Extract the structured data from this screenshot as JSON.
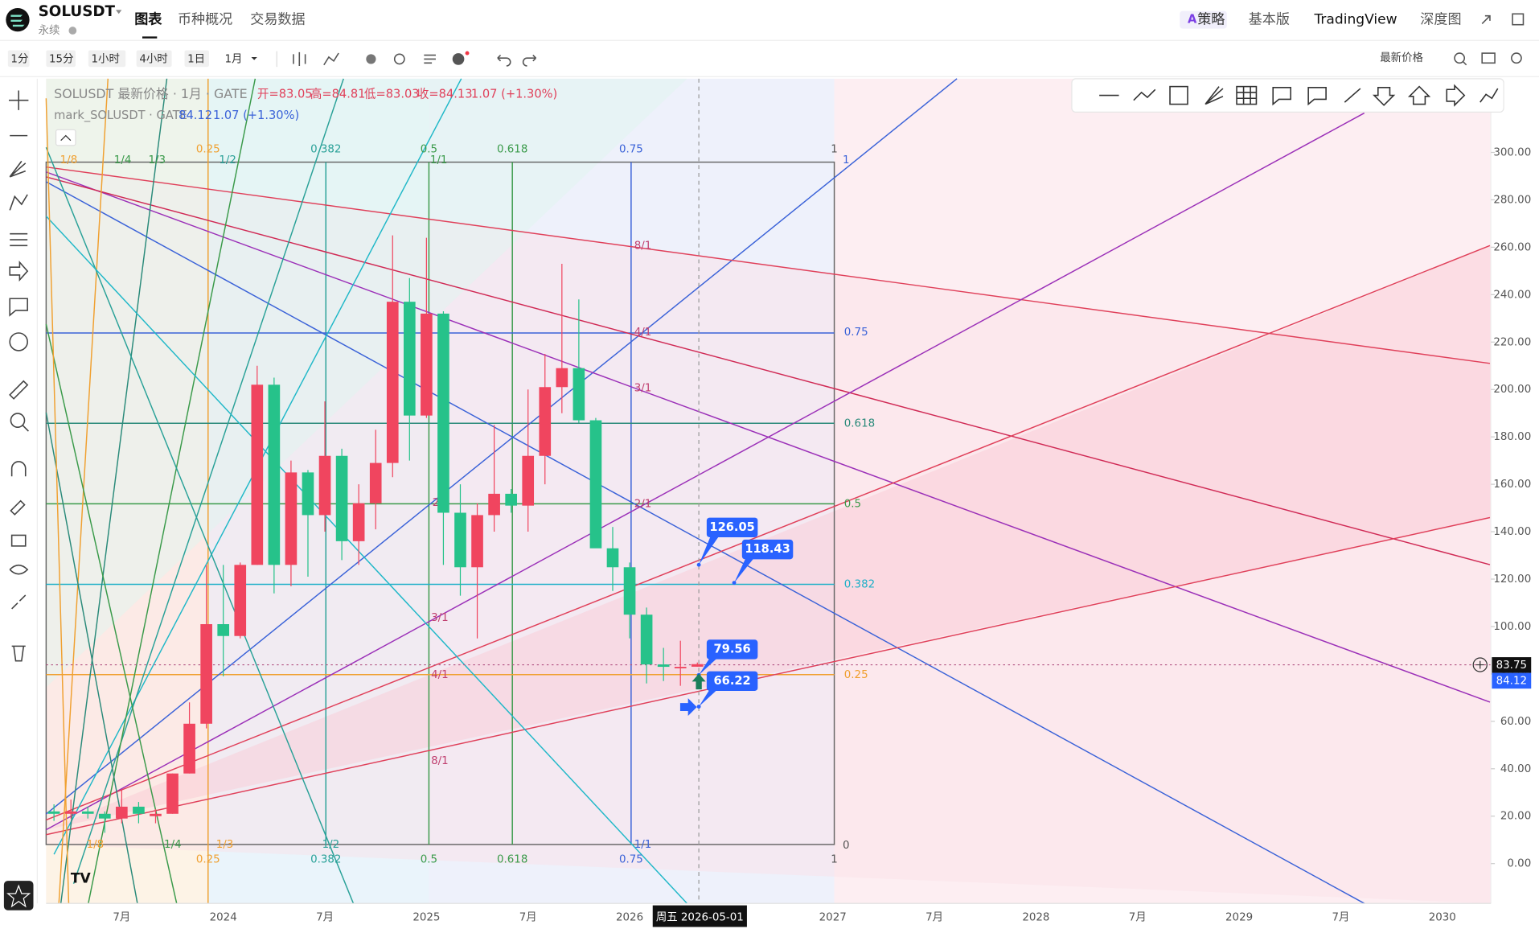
{
  "header": {
    "symbol": "SOLUSDT",
    "contract": "永续",
    "tabs": [
      "图表",
      "币种概况",
      "交易数据"
    ],
    "right_tabs": [
      "策略",
      "基本版",
      "TradingView",
      "深度图"
    ]
  },
  "toolbar": {
    "intervals": [
      "1分",
      "15分",
      "1小时",
      "4小时",
      "1日",
      "1月"
    ],
    "price_type": "最新价格"
  },
  "legend": {
    "title": "SOLUSDT 最新价格 · 1月 · GATE",
    "open": "开=83.05",
    "high": "高=84.81",
    "low": "低=83.03",
    "close": "收=84.13",
    "change": "1.07 (+1.30%)",
    "mark_title": "mark_SOLUSDT · GATE",
    "mark_price": "84.12",
    "mark_change": "1.07 (+1.30%)"
  },
  "drawings": {
    "top_labels": [
      "1/8",
      "1/4",
      "1/3",
      "0.25",
      "1/2",
      "0.382",
      "0.5",
      "1/1",
      "0.618",
      "0.75",
      "1",
      "1"
    ],
    "bottom_labels": [
      "1/8",
      "1/4",
      "1/3",
      "1/2",
      "1/1",
      "0",
      "0.25",
      "0.382",
      "0.5",
      "0.618",
      "0.75",
      "1"
    ],
    "right_labels": [
      "0.75",
      "0.618",
      "0.5",
      "0.382",
      "0.25"
    ],
    "gann_labels": [
      "8/1",
      "4/1",
      "3/1",
      "2/1",
      "2",
      "3/1",
      "4/1",
      "8/1"
    ]
  },
  "chart_data": {
    "type": "candlestick",
    "up_color": "#f0455f",
    "down_color": "#26c28a",
    "ylim": [
      -16.8,
      331.1
    ],
    "yticks": [
      {
        "value": 0,
        "label": "0.00"
      },
      {
        "value": 20,
        "label": "20.00"
      },
      {
        "value": 40,
        "label": "40.00"
      },
      {
        "value": 60,
        "label": "60.00"
      },
      {
        "value": 80,
        "label": "80.00"
      },
      {
        "value": 100,
        "label": "100.00"
      },
      {
        "value": 120,
        "label": "120.00"
      },
      {
        "value": 140,
        "label": "140.00"
      },
      {
        "value": 160,
        "label": "160.00"
      },
      {
        "value": 180,
        "label": "180.00"
      },
      {
        "value": 200,
        "label": "200.00"
      },
      {
        "value": 220,
        "label": "220.00"
      },
      {
        "value": 240,
        "label": "240.00"
      },
      {
        "value": 260,
        "label": "260.00"
      },
      {
        "value": 280,
        "label": "280.00"
      },
      {
        "value": 300,
        "label": "300.00"
      }
    ],
    "x_labels": [
      "7月",
      "2024",
      "7月",
      "2025",
      "7月",
      "2026",
      "2027",
      "7月",
      "2028",
      "7月",
      "2029",
      "7月",
      "2030"
    ],
    "candles": [
      [
        22,
        25,
        18,
        21
      ],
      [
        21,
        27,
        19,
        22
      ],
      [
        22,
        24,
        19,
        21
      ],
      [
        21,
        22,
        13,
        19
      ],
      [
        19,
        31,
        17,
        24
      ],
      [
        24,
        26,
        17,
        21
      ],
      [
        20,
        23,
        17,
        21
      ],
      [
        21,
        38,
        21,
        38
      ],
      [
        38,
        68,
        38,
        59
      ],
      [
        59,
        126,
        57,
        101
      ],
      [
        101,
        126,
        79,
        96
      ],
      [
        96,
        127,
        95,
        126
      ],
      [
        126,
        210,
        126,
        202
      ],
      [
        202,
        205,
        114,
        126
      ],
      [
        126,
        170,
        117,
        165
      ],
      [
        165,
        166,
        121,
        147
      ],
      [
        147,
        195,
        140,
        172
      ],
      [
        172,
        175,
        128,
        136
      ],
      [
        136,
        160,
        126,
        152
      ],
      [
        152,
        183,
        141,
        169
      ],
      [
        169,
        265,
        163,
        237
      ],
      [
        237,
        247,
        170,
        189
      ],
      [
        189,
        264,
        188,
        232
      ],
      [
        232,
        233,
        126,
        148
      ],
      [
        148,
        160,
        113,
        125
      ],
      [
        125,
        152,
        95,
        147
      ],
      [
        147,
        185,
        140,
        156
      ],
      [
        156,
        158,
        148,
        151
      ],
      [
        151,
        200,
        140,
        172
      ],
      [
        172,
        215,
        160,
        201
      ],
      [
        201,
        253,
        190,
        209
      ],
      [
        209,
        238,
        186,
        187
      ],
      [
        187,
        188,
        135,
        133
      ],
      [
        133,
        142,
        115,
        125
      ],
      [
        125,
        127,
        95,
        105
      ],
      [
        105,
        108,
        76,
        84
      ],
      [
        84,
        91,
        77,
        83
      ],
      [
        83,
        94,
        75,
        83
      ],
      [
        83.05,
        84.81,
        83.03,
        84.13
      ]
    ],
    "crosshair_label": "周五 2026-05-01",
    "crosshair_price": 83.75,
    "mark_price": 84.12,
    "price_labels": [
      126.05,
      118.43,
      79.56,
      66.22
    ]
  }
}
